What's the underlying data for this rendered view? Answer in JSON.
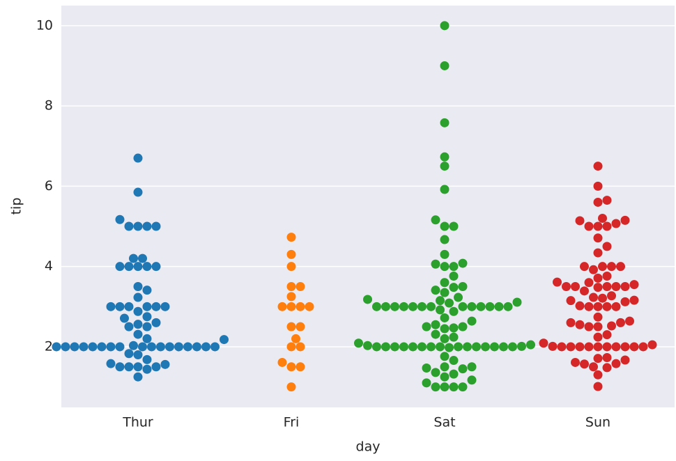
{
  "chart_data": {
    "type": "swarm",
    "x_label": "day",
    "y_label": "tip",
    "categories": [
      "Thur",
      "Fri",
      "Sat",
      "Sun"
    ],
    "colors": [
      "#1f77b4",
      "#ff7f0e",
      "#2ca02c",
      "#d62728"
    ],
    "values": [
      [
        6.7,
        5.85,
        5.17,
        5,
        5,
        5,
        5,
        4.2,
        4.2,
        4,
        4,
        4,
        4,
        4,
        3.5,
        3.41,
        3.23,
        3,
        3,
        3,
        3,
        3,
        3,
        2.88,
        2.75,
        2.71,
        2.6,
        2.56,
        2.5,
        2.5,
        2.31,
        2.2,
        2.18,
        2.03,
        2,
        2,
        2,
        2,
        2,
        2,
        2,
        2,
        2,
        2,
        2,
        2,
        2,
        2,
        2,
        2,
        2,
        1.83,
        1.8,
        1.68,
        1.58,
        1.56,
        1.5,
        1.5,
        1.5,
        1.5,
        1.44,
        1.25
      ],
      [
        4.73,
        4.3,
        4,
        3.5,
        3.5,
        3.25,
        3,
        3,
        3,
        3,
        2.5,
        2.5,
        2.2,
        2,
        2,
        1.61,
        1.5,
        1.5,
        1
      ],
      [
        10,
        9,
        7.58,
        6.73,
        6.5,
        5.92,
        5.16,
        5,
        5,
        4.67,
        4.3,
        4.08,
        4.06,
        4,
        4,
        3.76,
        3.6,
        3.5,
        3.48,
        3.41,
        3.35,
        3.23,
        3.18,
        3.15,
        3.11,
        3.09,
        3,
        3,
        3,
        3,
        3,
        3,
        3,
        3,
        3,
        3,
        3,
        3,
        3,
        2.92,
        2.88,
        2.72,
        2.64,
        2.55,
        2.5,
        2.5,
        2.47,
        2.45,
        2.31,
        2.24,
        2.2,
        2.09,
        2.05,
        2.03,
        2.01,
        2,
        2,
        2,
        2,
        2,
        2,
        2,
        2,
        2,
        2,
        2,
        2,
        2,
        2,
        2,
        1.98,
        1.76,
        1.66,
        1.5,
        1.5,
        1.47,
        1.45,
        1.36,
        1.32,
        1.25,
        1.17,
        1.1,
        1,
        1,
        1,
        1
      ],
      [
        6.5,
        6,
        5.65,
        5.6,
        5.2,
        5.14,
        5.15,
        5,
        5,
        5,
        5.07,
        4.71,
        4.5,
        4.34,
        4,
        4,
        4,
        4,
        3.92,
        3.76,
        3.71,
        3.6,
        3.61,
        3.55,
        3.5,
        3.5,
        3.5,
        3.5,
        3.5,
        3.48,
        3.39,
        3.27,
        3.23,
        3.21,
        3.16,
        3.15,
        3.12,
        3.02,
        3,
        3,
        3,
        3,
        2.74,
        2.64,
        2.6,
        2.6,
        2.55,
        2.52,
        2.5,
        2.5,
        2.3,
        2.24,
        2.09,
        2.05,
        2.01,
        2,
        2,
        2,
        2,
        2,
        2,
        2,
        2,
        2,
        2,
        1.73,
        1.71,
        1.67,
        1.61,
        1.58,
        1.57,
        1.5,
        1.48,
        1.3,
        1.01
      ]
    ],
    "ylim": [
      0.49,
      10.5
    ],
    "yticks": [
      2,
      4,
      6,
      8,
      10
    ],
    "grid": true
  }
}
